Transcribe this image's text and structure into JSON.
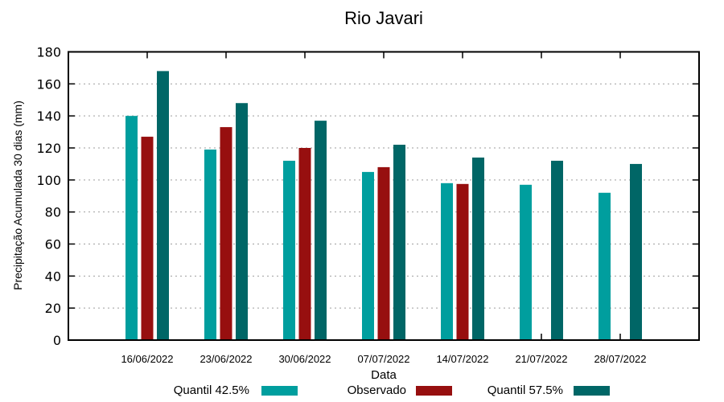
{
  "chart_data": {
    "type": "bar",
    "title": "Rio Javari",
    "xlabel": "Data",
    "ylabel": "Precipitação Acumulada 30 dias (mm)",
    "ylim": [
      0,
      180
    ],
    "yticks": [
      0,
      20,
      40,
      60,
      80,
      100,
      120,
      140,
      160,
      180
    ],
    "grid": "horizontal-dotted",
    "legend_position": "bottom",
    "categories": [
      "16/06/2022",
      "23/06/2022",
      "30/06/2022",
      "07/07/2022",
      "14/07/2022",
      "21/07/2022",
      "28/07/2022"
    ],
    "series": [
      {
        "name": "Quantil 42.5%",
        "color": "#009E9E",
        "values": [
          140,
          119,
          112,
          105,
          98,
          97,
          92
        ]
      },
      {
        "name": "Observado",
        "color": "#970F0F",
        "values": [
          127,
          133,
          120,
          108,
          97.5,
          null,
          null
        ]
      },
      {
        "name": "Quantil 57.5%",
        "color": "#006666",
        "values": [
          168,
          148,
          137,
          122,
          114,
          112,
          110
        ]
      }
    ],
    "colors": {
      "grid": "#9e9e9e",
      "border": "#000000",
      "background": "#ffffff"
    }
  }
}
